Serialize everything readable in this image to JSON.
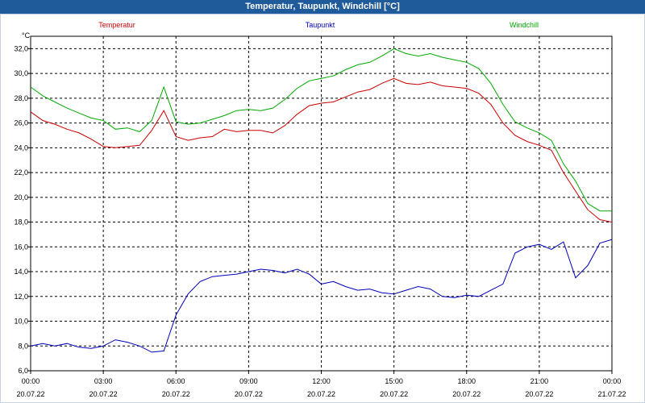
{
  "window": {
    "title": "Temperatur, Taupunkt, Windchill [°C]"
  },
  "colors": {
    "titlebar": "#1f5b9a",
    "temperatur": "#cc0000",
    "taupunkt": "#0000bb",
    "windchill": "#00aa00",
    "grid": "#000000"
  },
  "chart_data": {
    "type": "line",
    "title": "Temperatur, Taupunkt, Windchill [°C]",
    "ylabel": "°C",
    "ylim": [
      6,
      33
    ],
    "xlim_hours": [
      0,
      24
    ],
    "grid": true,
    "y_ticks": [
      "6,0",
      "8,0",
      "10,0",
      "12,0",
      "14,0",
      "16,0",
      "18,0",
      "20,0",
      "22,0",
      "24,0",
      "26,0",
      "28,0",
      "30,0",
      "32,0"
    ],
    "x_ticks": [
      {
        "time": "00:00",
        "date": "20.07.22"
      },
      {
        "time": "03:00",
        "date": "20.07.22"
      },
      {
        "time": "06:00",
        "date": "20.07.22"
      },
      {
        "time": "09:00",
        "date": "20.07.22"
      },
      {
        "time": "12:00",
        "date": "20.07.22"
      },
      {
        "time": "15:00",
        "date": "20.07.22"
      },
      {
        "time": "18:00",
        "date": "20.07.22"
      },
      {
        "time": "21:00",
        "date": "20.07.22"
      },
      {
        "time": "00:00",
        "date": "21.07.22"
      }
    ],
    "series": [
      {
        "name": "Temperatur",
        "color": "#cc0000",
        "x": [
          0,
          0.5,
          1,
          1.5,
          2,
          2.5,
          3,
          3.5,
          4,
          4.5,
          5,
          5.5,
          6,
          6.5,
          7,
          7.5,
          8,
          8.5,
          9,
          9.5,
          10,
          10.5,
          11,
          11.5,
          12,
          12.5,
          13,
          13.5,
          14,
          14.5,
          15,
          15.5,
          16,
          16.5,
          17,
          17.5,
          18,
          18.5,
          19,
          19.5,
          20,
          20.5,
          21,
          21.5,
          22,
          22.5,
          23,
          23.5,
          24
        ],
        "values": [
          26.9,
          26.2,
          25.9,
          25.5,
          25.2,
          24.7,
          24.1,
          24.0,
          24.1,
          24.2,
          25.4,
          27.0,
          24.9,
          24.6,
          24.8,
          24.9,
          25.5,
          25.3,
          25.4,
          25.4,
          25.2,
          25.8,
          26.7,
          27.4,
          27.6,
          27.7,
          28.1,
          28.5,
          28.7,
          29.2,
          29.6,
          29.2,
          29.1,
          29.3,
          29.0,
          28.9,
          28.8,
          28.4,
          27.5,
          26.0,
          25.0,
          24.5,
          24.2,
          23.8,
          22.0,
          20.5,
          19.0,
          18.2,
          18.0
        ]
      },
      {
        "name": "Taupunkt",
        "color": "#0000bb",
        "x": [
          0,
          0.5,
          1,
          1.5,
          2,
          2.5,
          3,
          3.5,
          4,
          4.5,
          5,
          5.5,
          6,
          6.5,
          7,
          7.5,
          8,
          8.5,
          9,
          9.5,
          10,
          10.5,
          11,
          11.5,
          12,
          12.5,
          13,
          13.5,
          14,
          14.5,
          15,
          15.5,
          16,
          16.5,
          17,
          17.5,
          18,
          18.5,
          19,
          19.5,
          20,
          20.5,
          21,
          21.5,
          22,
          22.5,
          23,
          23.5,
          24
        ],
        "values": [
          8.0,
          8.2,
          8.0,
          8.2,
          7.9,
          7.8,
          8.0,
          8.5,
          8.3,
          8.0,
          7.5,
          7.6,
          10.5,
          12.2,
          13.2,
          13.6,
          13.7,
          13.8,
          14.0,
          14.2,
          14.1,
          13.9,
          14.2,
          13.8,
          13.0,
          13.2,
          12.8,
          12.5,
          12.6,
          12.3,
          12.2,
          12.5,
          12.8,
          12.6,
          12.0,
          11.9,
          12.1,
          12.0,
          12.5,
          13.0,
          15.5,
          16.0,
          16.2,
          15.8,
          16.4,
          13.5,
          14.5,
          16.3,
          16.6
        ]
      },
      {
        "name": "Windchill",
        "color": "#00aa00",
        "x": [
          0,
          0.5,
          1,
          1.5,
          2,
          2.5,
          3,
          3.5,
          4,
          4.5,
          5,
          5.5,
          6,
          6.5,
          7,
          7.5,
          8,
          8.5,
          9,
          9.5,
          10,
          10.5,
          11,
          11.5,
          12,
          12.5,
          13,
          13.5,
          14,
          14.5,
          15,
          15.5,
          16,
          16.5,
          17,
          17.5,
          18,
          18.5,
          19,
          19.5,
          20,
          20.5,
          21,
          21.5,
          22,
          22.5,
          23,
          23.5,
          24
        ],
        "values": [
          28.9,
          28.2,
          27.7,
          27.2,
          26.8,
          26.4,
          26.2,
          25.5,
          25.6,
          25.3,
          26.2,
          28.9,
          26.1,
          25.9,
          26.0,
          26.3,
          26.6,
          27.0,
          27.1,
          27.0,
          27.2,
          27.9,
          28.8,
          29.4,
          29.6,
          29.8,
          30.3,
          30.7,
          30.9,
          31.4,
          32.0,
          31.6,
          31.4,
          31.6,
          31.3,
          31.1,
          30.9,
          30.4,
          29.2,
          27.5,
          26.1,
          25.6,
          25.2,
          24.6,
          22.7,
          21.3,
          19.5,
          18.9,
          18.9
        ]
      }
    ]
  }
}
